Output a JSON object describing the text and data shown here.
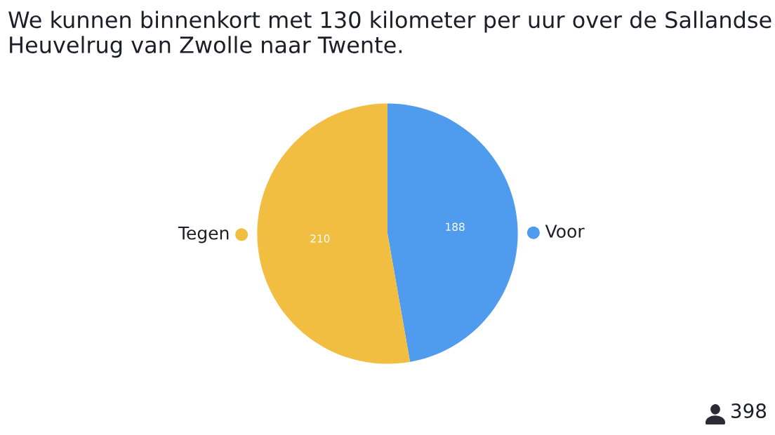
{
  "chart_data": {
    "type": "pie",
    "title": "We kunnen binnenkort met 130 kilometer per uur over de Sallandse Heuvelrug van Zwolle naar Twente.",
    "categories": [
      "Voor",
      "Tegen"
    ],
    "values": [
      188,
      210
    ],
    "colors": [
      "#4f9bed",
      "#f2be42"
    ],
    "data_labels": true,
    "annotations": [
      "398"
    ]
  }
}
